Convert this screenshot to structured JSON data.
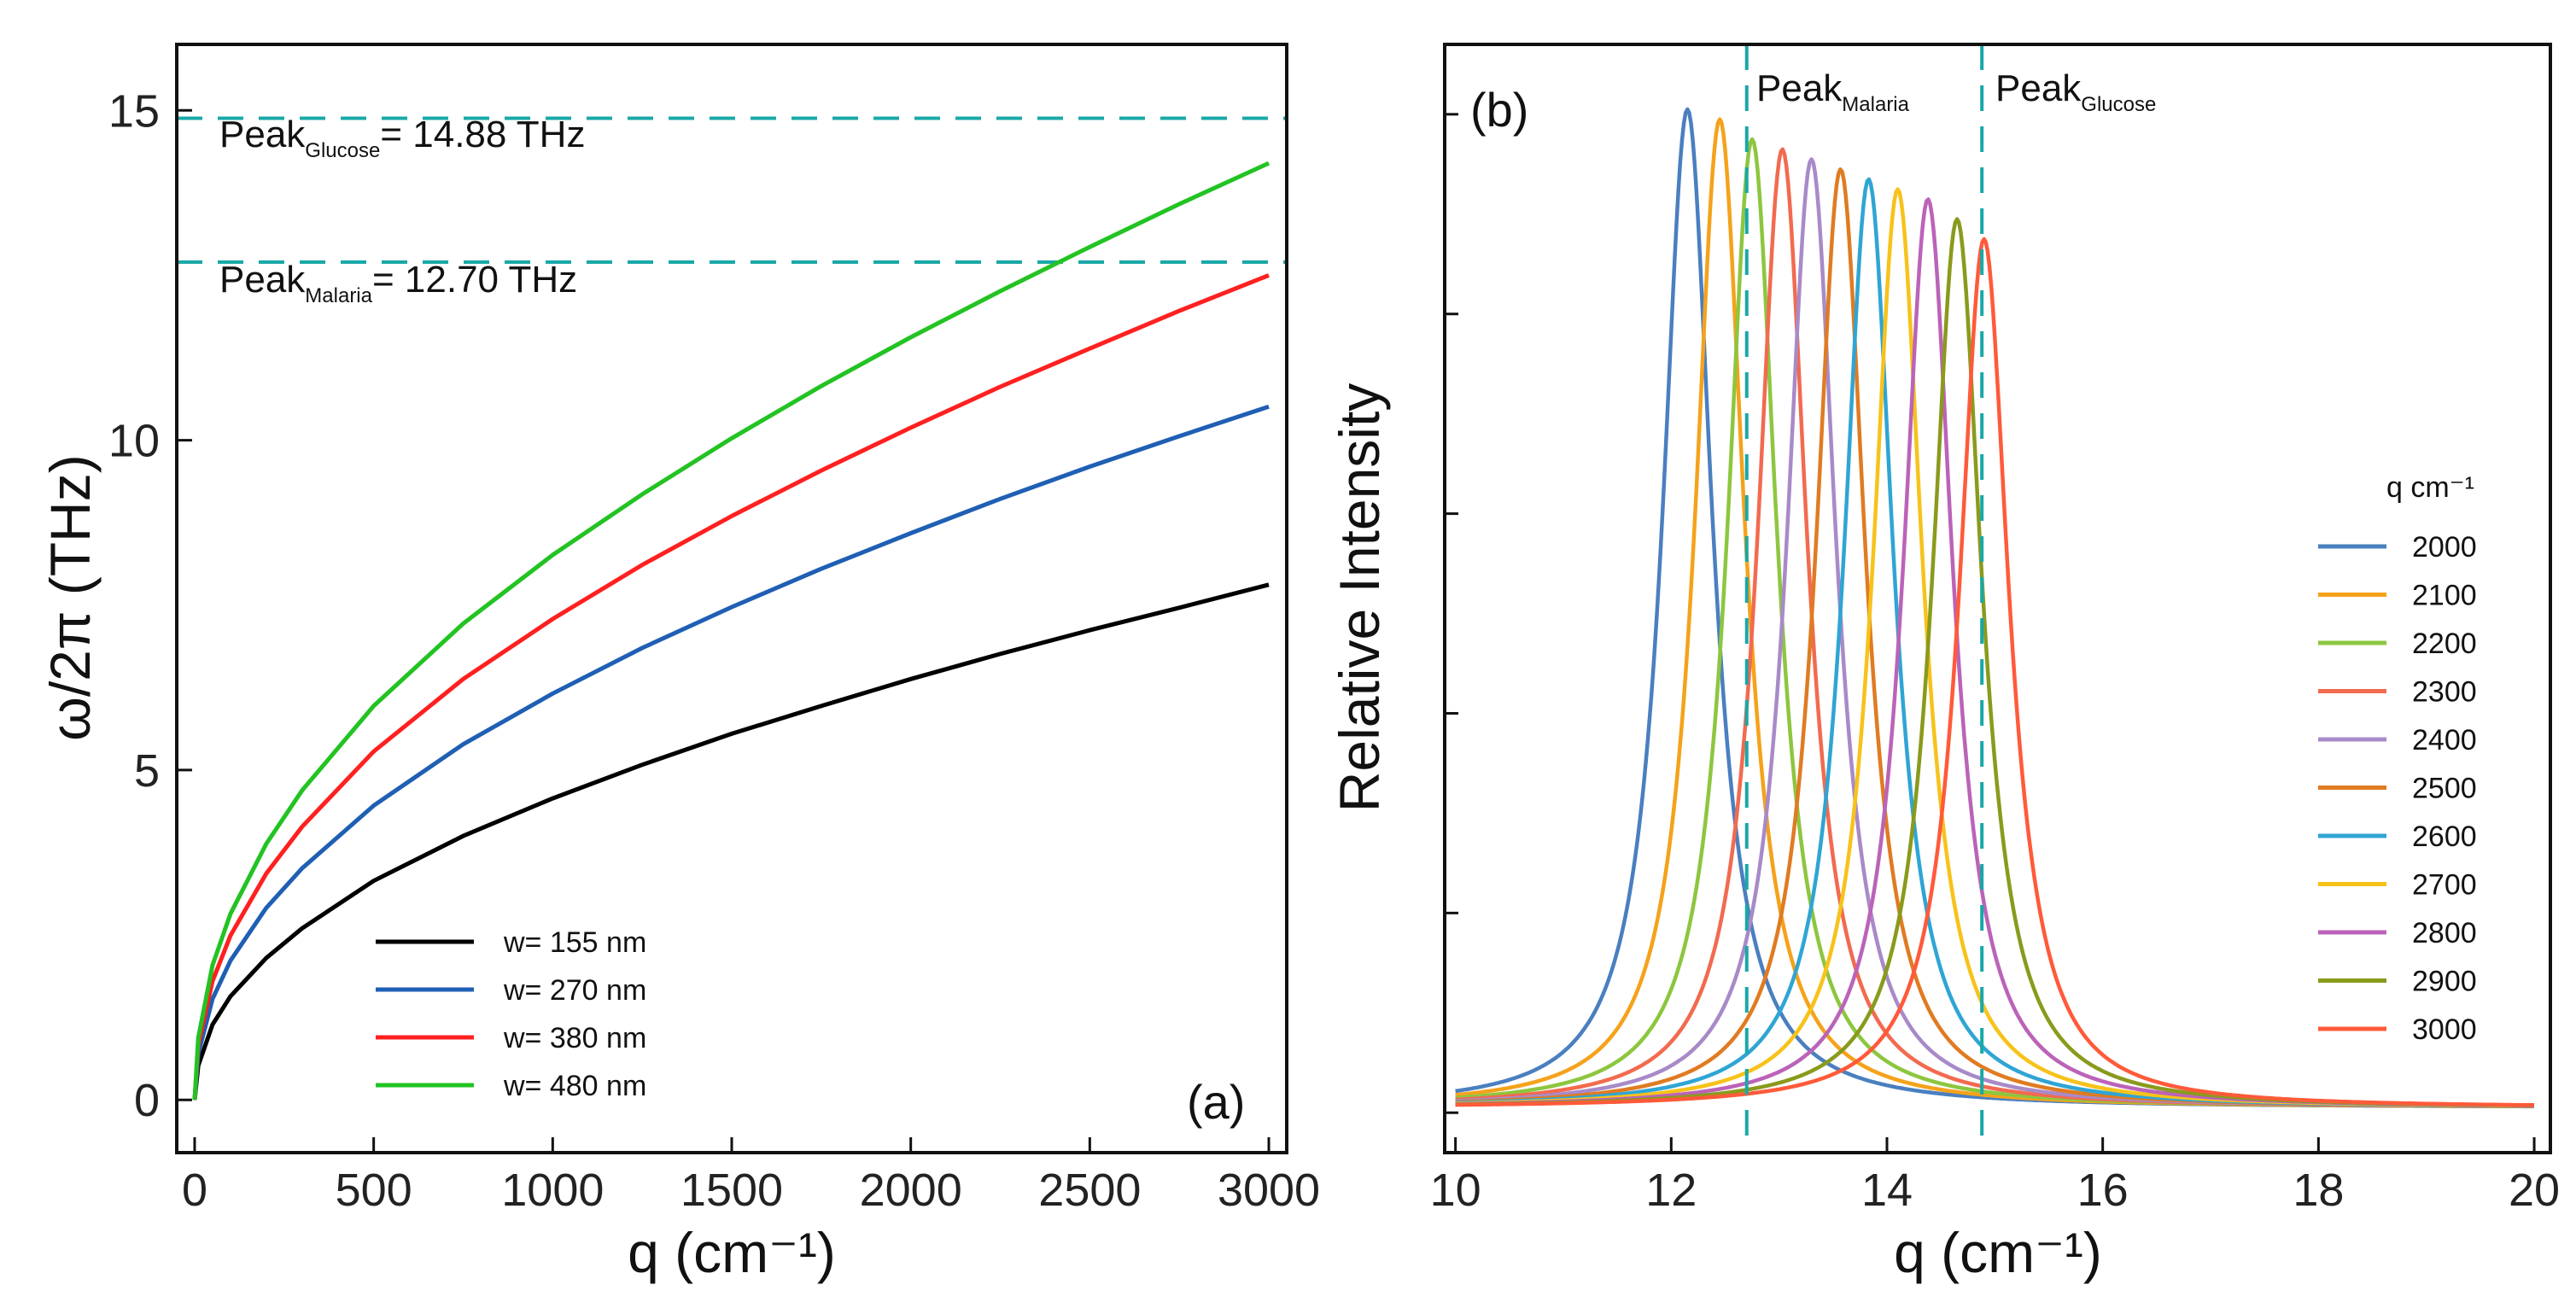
{
  "chart_data": [
    {
      "type": "line",
      "panel_label": "(a)",
      "xlabel": "q (cm⁻¹)",
      "ylabel": "ω/2π (THz)",
      "xlim": [
        -50,
        3050
      ],
      "ylim": [
        -0.8,
        16
      ],
      "xticks": [
        0,
        500,
        1000,
        1500,
        2000,
        2500,
        3000
      ],
      "xtick_labels": [
        "0",
        "500",
        "1000",
        "1500",
        "2000",
        "2500",
        "3000"
      ],
      "yticks": [
        0,
        5,
        10,
        15
      ],
      "ytick_labels": [
        "0",
        "5",
        "10",
        "15"
      ],
      "x": [
        0,
        10,
        50,
        100,
        200,
        300,
        500,
        750,
        1000,
        1250,
        1500,
        1750,
        2000,
        2250,
        2500,
        2750,
        3000
      ],
      "series": [
        {
          "name": "w= 155 nm",
          "color": "#000000",
          "values": [
            0,
            0.52,
            1.14,
            1.57,
            2.15,
            2.6,
            3.32,
            4.0,
            4.57,
            5.08,
            5.55,
            5.97,
            6.38,
            6.76,
            7.12,
            7.46,
            7.81
          ]
        },
        {
          "name": "w= 270 nm",
          "color": "#1f5fb4",
          "values": [
            0,
            0.7,
            1.53,
            2.11,
            2.91,
            3.51,
            4.46,
            5.39,
            6.16,
            6.85,
            7.47,
            8.05,
            8.59,
            9.11,
            9.6,
            10.06,
            10.51
          ]
        },
        {
          "name": "w= 380 nm",
          "color": "#ff2020",
          "values": [
            0,
            0.83,
            1.8,
            2.49,
            3.43,
            4.14,
            5.28,
            6.38,
            7.29,
            8.11,
            8.85,
            9.54,
            10.19,
            10.81,
            11.39,
            11.96,
            12.5
          ]
        },
        {
          "name": "w= 480 nm",
          "color": "#22c322",
          "values": [
            0,
            0.94,
            2.04,
            2.82,
            3.88,
            4.69,
            5.97,
            7.22,
            8.26,
            9.18,
            10.03,
            10.82,
            11.56,
            12.26,
            12.93,
            13.58,
            14.2
          ]
        }
      ],
      "reference_lines": [
        {
          "label_main": "Peak",
          "label_sub": "Glucose",
          "label_rest": "= 14.88 THz",
          "y": 14.88,
          "color": "#1aa8a8"
        },
        {
          "label_main": "Peak",
          "label_sub": "Malaria",
          "label_rest": "= 12.70 THz",
          "y": 12.7,
          "color": "#1aa8a8"
        }
      ],
      "legend_position": "bottom-center"
    },
    {
      "type": "line",
      "panel_label": "(b)",
      "xlabel": "q (cm⁻¹)",
      "ylabel": "Relative Intensity",
      "xlim": [
        9.9,
        20.15
      ],
      "ylim": [
        -0.04,
        1.07
      ],
      "xticks": [
        10,
        12,
        14,
        16,
        18,
        20
      ],
      "xtick_labels": [
        "10",
        "12",
        "14",
        "16",
        "18",
        "20"
      ],
      "legend_title": "q cm⁻¹",
      "legend_position": "right",
      "peak_shape": "lorentzian",
      "peak_halfwidth": 0.28,
      "series": [
        {
          "name": "2000",
          "color": "#4a7fc0",
          "peak_x": 12.15,
          "peak_y": 1.0
        },
        {
          "name": "2100",
          "color": "#f5a21b",
          "peak_x": 12.45,
          "peak_y": 0.99
        },
        {
          "name": "2200",
          "color": "#8dc63f",
          "peak_x": 12.75,
          "peak_y": 0.97
        },
        {
          "name": "2300",
          "color": "#f26a4f",
          "peak_x": 13.03,
          "peak_y": 0.96
        },
        {
          "name": "2400",
          "color": "#a88ac8",
          "peak_x": 13.3,
          "peak_y": 0.95
        },
        {
          "name": "2500",
          "color": "#e07b22",
          "peak_x": 13.57,
          "peak_y": 0.94
        },
        {
          "name": "2600",
          "color": "#2fa5d4",
          "peak_x": 13.83,
          "peak_y": 0.93
        },
        {
          "name": "2700",
          "color": "#f7c21a",
          "peak_x": 14.1,
          "peak_y": 0.92
        },
        {
          "name": "2800",
          "color": "#bb63b8",
          "peak_x": 14.38,
          "peak_y": 0.91
        },
        {
          "name": "2900",
          "color": "#8a9a1c",
          "peak_x": 14.65,
          "peak_y": 0.89
        },
        {
          "name": "3000",
          "color": "#ff5a3a",
          "peak_x": 14.9,
          "peak_y": 0.87
        }
      ],
      "reference_lines": [
        {
          "label_main": "Peak",
          "label_sub": "Malaria",
          "x": 12.7,
          "color": "#1aa8a8"
        },
        {
          "label_main": "Peak",
          "label_sub": "Glucose",
          "x": 14.88,
          "color": "#1aa8a8"
        }
      ]
    }
  ]
}
